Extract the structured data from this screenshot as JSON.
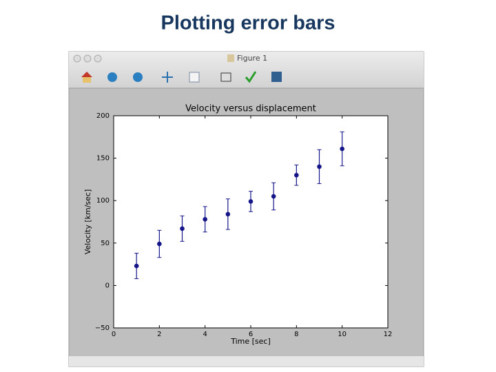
{
  "slide_title": "Plotting error bars",
  "window_title": "Figure 1",
  "chart_data": {
    "type": "errorbar",
    "title": "Velocity versus displacement",
    "x_label": "Time [sec]",
    "y_label": "Velocity [km/sec]",
    "x": [
      1,
      2,
      3,
      4,
      5,
      6,
      7,
      8,
      9,
      10
    ],
    "values": [
      23,
      49,
      67,
      78,
      84,
      99,
      105,
      130,
      140,
      161
    ],
    "errors": [
      15,
      16,
      15,
      15,
      18,
      12,
      16,
      12,
      20,
      20
    ],
    "color": "#15158a",
    "xlim": [
      0,
      12
    ],
    "xticks": [
      0,
      2,
      4,
      6,
      8,
      10,
      12
    ],
    "ylim": [
      -50,
      200
    ],
    "yticks": [
      {
        "value": -50,
        "label": "−50"
      },
      0,
      50,
      100,
      150,
      200
    ]
  }
}
